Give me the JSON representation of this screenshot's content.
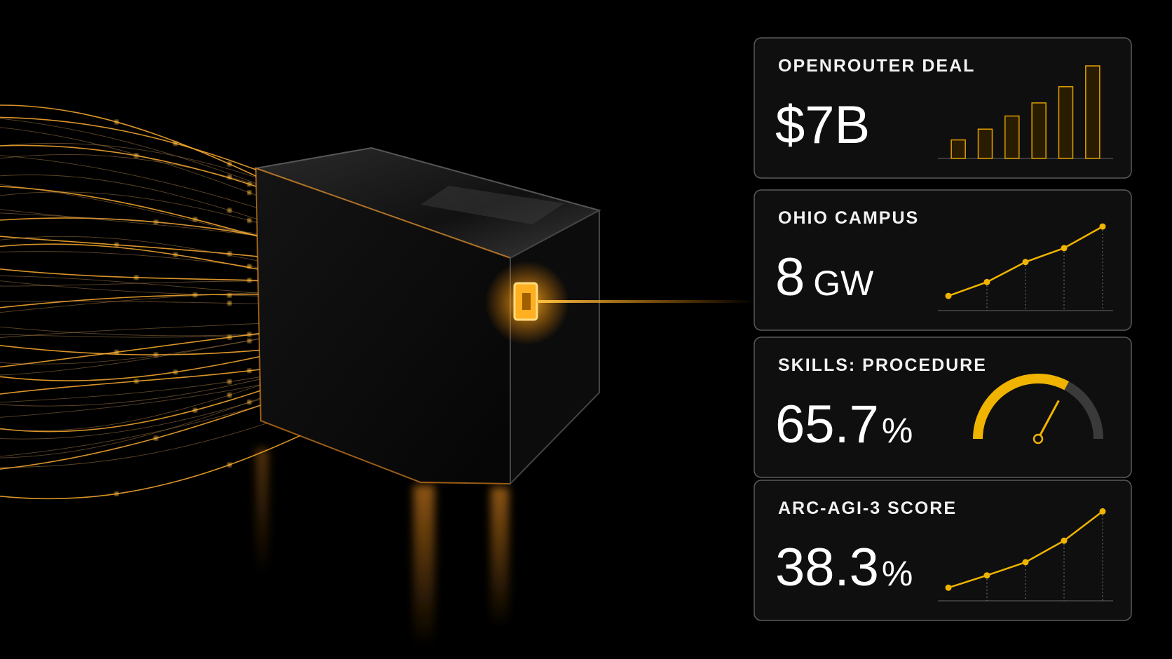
{
  "cards": [
    {
      "label": "OPENROUTER DEAL",
      "value": "$7B",
      "spark_type": "bar",
      "spark": [
        24,
        38,
        55,
        72,
        93,
        120
      ],
      "spark_ylim": [
        0,
        120
      ]
    },
    {
      "label": "OHIO CAMPUS",
      "value": 8,
      "unit": "GW",
      "spark_type": "line",
      "spark": [
        19,
        37,
        63,
        81,
        109
      ],
      "spark_ylim": [
        0,
        120
      ]
    },
    {
      "label": "SKILLS: PROCEDURE",
      "value": 65.7,
      "unit": "%",
      "spark_type": "gauge",
      "gauge_range": [
        0,
        100
      ]
    },
    {
      "label": "ARC-AGI-3 SCORE",
      "value": 38.3,
      "unit": "%",
      "spark_type": "line",
      "spark": [
        17,
        33,
        50,
        78,
        116
      ],
      "spark_ylim": [
        0,
        120
      ]
    }
  ]
}
